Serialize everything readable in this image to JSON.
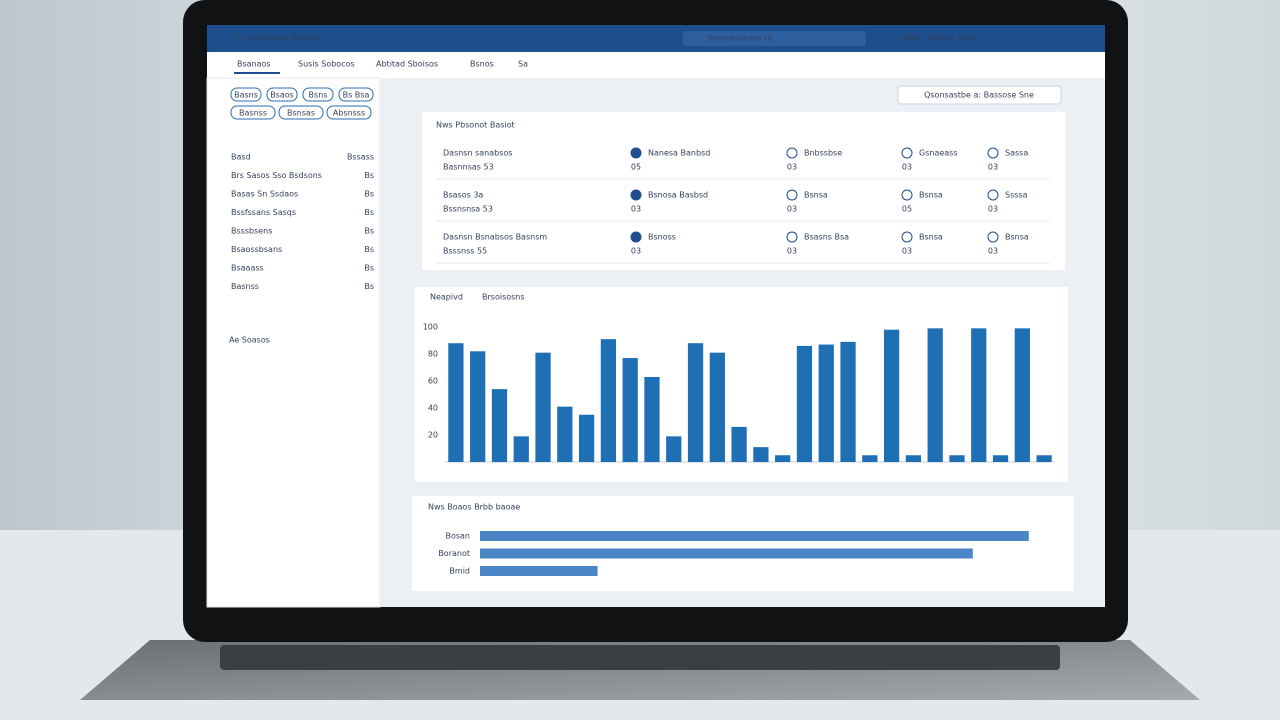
{
  "header": {
    "title": "Ev reaorssny Bnsears",
    "search": "Snsmessnsus ra",
    "menu": [
      "Mbo",
      "Mbnns Sass"
    ]
  },
  "nav": {
    "tabs": [
      "Bsanaos",
      "Susis Sobocos",
      "Abtitad Sboisos",
      "Bsnos",
      "Sa"
    ]
  },
  "sidebar": {
    "buttons": [
      "Basns",
      "Bsaos",
      "Bsns",
      "Bs Bsa",
      "Basnss",
      "Bsnsas",
      "Absnsss"
    ],
    "items": [
      {
        "label": "Basd",
        "count": "Bssass"
      },
      {
        "label": "Brs Sasos Sso Bsdsons",
        "count": "Bs"
      },
      {
        "label": "Basas Sn Ssdaos",
        "count": "Bs"
      },
      {
        "label": "Bssfssans Sasqs",
        "count": "Bs"
      },
      {
        "label": "Bsssbsens",
        "count": "Bs"
      },
      {
        "label": "Bsaossbsans",
        "count": "Bs"
      },
      {
        "label": "Bsaaass",
        "count": "Bs"
      },
      {
        "label": "Basnss",
        "count": "Bs"
      }
    ],
    "footer": "Ae Soasos"
  },
  "top_action": "Qsonsastbe a: Bassose Sne",
  "summary": {
    "title": "Nws Pbsonot Basiot",
    "rows": [
      {
        "name": "Dasnsn sanabsos",
        "sub": "Basnnsas 53",
        "cells": [
          [
            "05",
            "Nanesa Banbsd"
          ],
          [
            "03",
            "Bnbssbse"
          ],
          [
            "03",
            "Gsnaeass"
          ],
          [
            "03",
            "Sassa"
          ]
        ]
      },
      {
        "name": "Bsasos 3a",
        "sub": "Bssnsnsa 53",
        "cells": [
          [
            "03",
            "Bsnosa Basbsd"
          ],
          [
            "03",
            "Bsnsa"
          ],
          [
            "05",
            "Bsnsa"
          ],
          [
            "03",
            "Ssssa"
          ]
        ]
      },
      {
        "name": "Dasnsn Bsnabsos Basnsm",
        "sub": "Bsssnss 55",
        "cells": [
          [
            "03",
            "Bsnoss"
          ],
          [
            "03",
            "Bsasns Bsa"
          ],
          [
            "03",
            "Bsnsa"
          ],
          [
            "03",
            "Bsnsa"
          ]
        ]
      }
    ]
  },
  "chart_data": [
    {
      "type": "bar",
      "title": "Neapivd",
      "subtitle": "Brsoisosns",
      "color": "#1f6fb5",
      "categories": [
        null,
        null,
        null,
        null,
        null,
        null,
        null,
        null,
        null,
        null,
        null,
        null,
        null,
        null,
        null,
        null,
        null,
        null,
        null,
        null,
        null,
        null,
        null,
        null,
        null,
        null,
        null,
        null
      ],
      "values": [
        88,
        82,
        54,
        19,
        81,
        41,
        35,
        91,
        77,
        63,
        19,
        88,
        81,
        26,
        11,
        5,
        86,
        87,
        89,
        5,
        98,
        5,
        99,
        5,
        99,
        5,
        99,
        5
      ],
      "ylim": [
        0,
        100
      ],
      "yticks": [
        20,
        40,
        60,
        80,
        100
      ],
      "grid": false
    },
    {
      "type": "barh",
      "title": "Nws Boaos Brbb baoae",
      "color": "#4a86c5",
      "categories": [
        "Bosan",
        "Boranot",
        "Bmid"
      ],
      "values": [
        98,
        88,
        21
      ],
      "xlim": [
        0,
        100
      ]
    }
  ]
}
